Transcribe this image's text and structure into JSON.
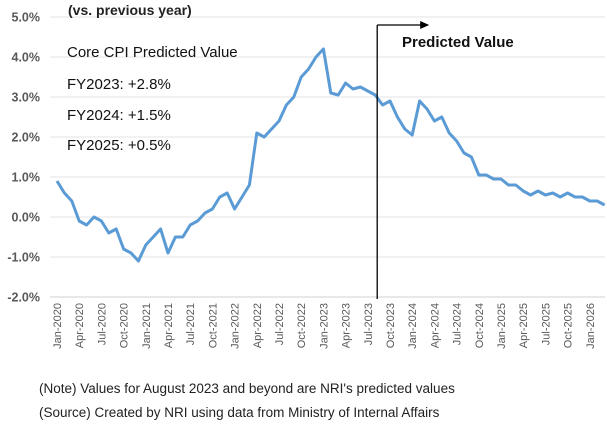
{
  "chart_data": {
    "type": "line",
    "title": "",
    "ylabel": "(vs. previous year)",
    "xlabel": "",
    "ylim": [
      -2.0,
      5.0
    ],
    "yticks": [
      "5.0%",
      "4.0%",
      "3.0%",
      "2.0%",
      "1.0%",
      "0.0%",
      "-1.0%",
      "-2.0%"
    ],
    "ytick_values": [
      5,
      4,
      3,
      2,
      1,
      0,
      -1,
      -2
    ],
    "grid": true,
    "xtick_labels": [
      "Jan-2020",
      "Apr-2020",
      "Jul-2020",
      "Oct-2020",
      "Jan-2021",
      "Apr-2021",
      "Jul-2021",
      "Oct-2021",
      "Jan-2022",
      "Apr-2022",
      "Jul-2022",
      "Oct-2022",
      "Jan-2023",
      "Apr-2023",
      "Jul-2023",
      "Oct-2023",
      "Jan-2024",
      "Apr-2024",
      "Jul-2024",
      "Oct-2024",
      "Jan-2025",
      "Apr-2025",
      "Jul-2025",
      "Oct-2025",
      "Jan-2026"
    ],
    "x_start": "Jan-2020",
    "series": [
      {
        "name": "Core CPI",
        "color": "#5B9BD5",
        "values": [
          0.9,
          0.6,
          0.4,
          -0.1,
          -0.2,
          0.0,
          -0.1,
          -0.4,
          -0.3,
          -0.8,
          -0.9,
          -1.1,
          -0.7,
          -0.5,
          -0.3,
          -0.9,
          -0.5,
          -0.5,
          -0.2,
          -0.1,
          0.1,
          0.2,
          0.5,
          0.6,
          0.2,
          0.5,
          0.8,
          2.1,
          2.0,
          2.2,
          2.4,
          2.8,
          3.0,
          3.5,
          3.7,
          4.0,
          4.2,
          3.1,
          3.05,
          3.35,
          3.2,
          3.25,
          3.15,
          3.05,
          2.8,
          2.9,
          2.5,
          2.2,
          2.05,
          2.9,
          2.7,
          2.4,
          2.5,
          2.1,
          1.9,
          1.6,
          1.5,
          1.05,
          1.05,
          0.95,
          0.95,
          0.8,
          0.8,
          0.65,
          0.55,
          0.65,
          0.55,
          0.6,
          0.5,
          0.6,
          0.5,
          0.5,
          0.4,
          0.4,
          0.3
        ]
      }
    ],
    "predicted_from": "Aug-2023",
    "annotations": {
      "heading": "Core CPI Predicted Value",
      "lines": [
        "FY2023: +2.8%",
        "FY2024: +1.5%",
        "FY2025: +0.5%"
      ],
      "predicted_label": "Predicted Value"
    }
  },
  "notes": {
    "note": "(Note) Values for August 2023 and beyond are NRI's predicted values",
    "source": "(Source) Created by NRI using data from Ministry of Internal Affairs"
  }
}
